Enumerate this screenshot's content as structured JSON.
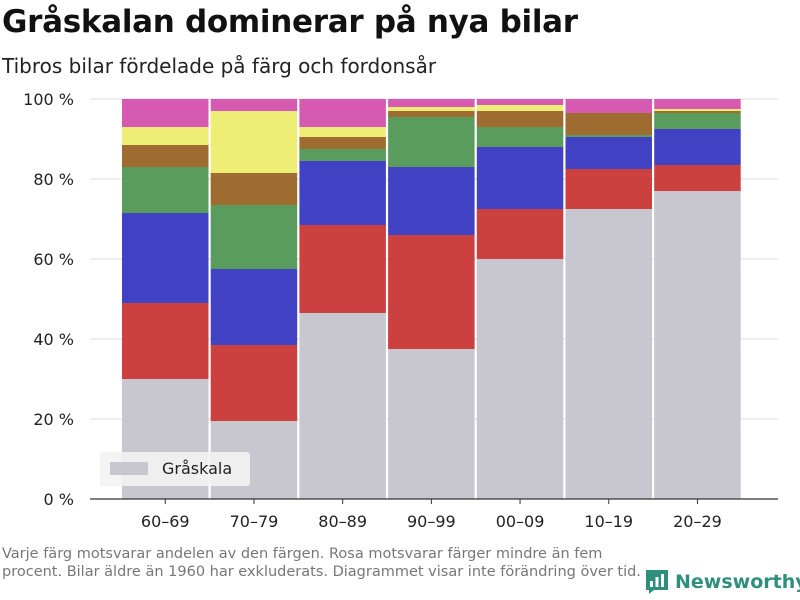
{
  "header": {
    "title": "Gråskalan dominerar på nya bilar",
    "subtitle": "Tibros bilar fördelade på färg och fordonsår"
  },
  "footnote": "Varje färg motsvarar andelen av den färgen. Rosa motsvarar färger mindre än fem procent. Bilar äldre än 1960 har exkluderats. Diagrammet visar inte förändring över tid.",
  "brand": {
    "name": "Newsworthy",
    "icon": "newsworthy-logo-icon",
    "color": "#2f8f7d"
  },
  "chart_data": {
    "type": "bar",
    "stacked": true,
    "categories": [
      "60–69",
      "70–79",
      "80–89",
      "90–99",
      "00–09",
      "10–19",
      "20–29"
    ],
    "ylim": [
      0,
      100
    ],
    "yticks": [
      0,
      20,
      40,
      60,
      80,
      100
    ],
    "ytick_labels": [
      "0 %",
      "20 %",
      "40 %",
      "60 %",
      "80 %",
      "100 %"
    ],
    "grid": true,
    "legend": {
      "position": "bottom-left",
      "entries": [
        "Gråskala"
      ]
    },
    "series": [
      {
        "name": "Gråskala",
        "color": "#c8c7cf",
        "values": [
          30,
          19.5,
          46.5,
          37.5,
          60,
          72.5,
          77
        ]
      },
      {
        "color": "#cc4040",
        "values": [
          19,
          19,
          22,
          28.5,
          12.5,
          10,
          6.5
        ]
      },
      {
        "color": "#4242c4",
        "values": [
          22.5,
          19,
          16,
          17,
          15.5,
          8,
          9
        ]
      },
      {
        "color": "#5a9b5e",
        "values": [
          11.5,
          16,
          3,
          12.5,
          5,
          0.5,
          4
        ]
      },
      {
        "color": "#9e6b30",
        "values": [
          5.5,
          8,
          3,
          1.5,
          4,
          5.5,
          0.5
        ]
      },
      {
        "color": "#eeee77",
        "values": [
          4.5,
          15.5,
          2.5,
          1,
          1.5,
          0,
          0.5
        ]
      },
      {
        "color": "#d65ab0",
        "values": [
          7,
          3,
          7,
          2,
          1.5,
          3.5,
          2.5
        ]
      }
    ]
  }
}
